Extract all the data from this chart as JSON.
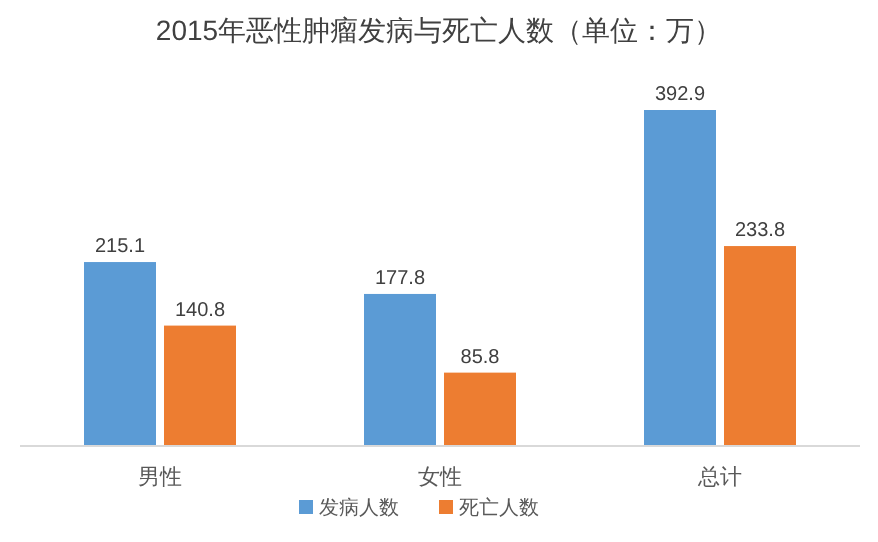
{
  "chart_data": {
    "type": "bar",
    "title": "2015年恶性肿瘤发病与死亡人数（单位：万）",
    "categories": [
      "男性",
      "女性",
      "总计"
    ],
    "series": [
      {
        "name": "发病人数",
        "color": "#5b9bd5",
        "values": [
          215.1,
          177.8,
          392.9
        ]
      },
      {
        "name": "死亡人数",
        "color": "#ed7d31",
        "values": [
          140.8,
          85.8,
          233.8
        ]
      }
    ],
    "data_labels": true,
    "legend": "bottom",
    "grid": false
  }
}
